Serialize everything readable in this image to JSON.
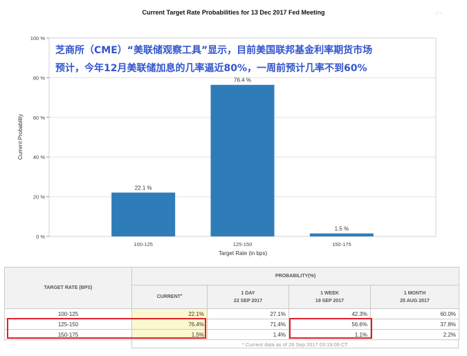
{
  "chart_data": {
    "type": "bar",
    "title": "Current Target Rate Probabilities for 13 Dec 2017 Fed Meeting",
    "xlabel": "Target Rate (in bps)",
    "ylabel": "Current Probability",
    "categories": [
      "100-125",
      "125-150",
      "150-175"
    ],
    "values": [
      22.1,
      76.4,
      1.5
    ],
    "value_labels": [
      "22.1 %",
      "76.4 %",
      "1.5 %"
    ],
    "yticks": [
      "0 %",
      "20 %",
      "40 %",
      "60 %",
      "80 %",
      "100 %"
    ],
    "ylim": [
      0,
      100
    ],
    "grid": true,
    "bar_color": "#2e7db9"
  },
  "annotation": {
    "line1": "芝商所（CME）“美联储观察工具”显示，目前美国联邦基金利率期货市场",
    "line2": "预计，今年12月美联储加息的几率逼近80%，一周前预计几率不到60%"
  },
  "corner_mark": "⸝⸜",
  "table": {
    "rate_header": "TARGET RATE (BPS)",
    "probability_header": "PROBABILITY(%)",
    "columns": [
      {
        "line1": "CURRENT",
        "sup": "*",
        "line2": ""
      },
      {
        "line1": "1 DAY",
        "line2": "22 SEP 2017"
      },
      {
        "line1": "1 WEEK",
        "line2": "19 SEP 2017"
      },
      {
        "line1": "1 MONTH",
        "line2": "25 AUG 2017"
      }
    ],
    "rows": [
      {
        "rate": "100-125",
        "values": [
          "22.1%",
          "27.1%",
          "42.3%",
          "60.0%"
        ]
      },
      {
        "rate": "125-150",
        "values": [
          "76.4%",
          "71.4%",
          "56.6%",
          "37.8%"
        ]
      },
      {
        "rate": "150-175",
        "values": [
          "1.5%",
          "1.4%",
          "1.1%",
          "2.2%"
        ]
      }
    ],
    "footnote": "* Current data as of 26 Sep 2017 03:19:09 CT"
  },
  "highlight_color": "#e0202a"
}
